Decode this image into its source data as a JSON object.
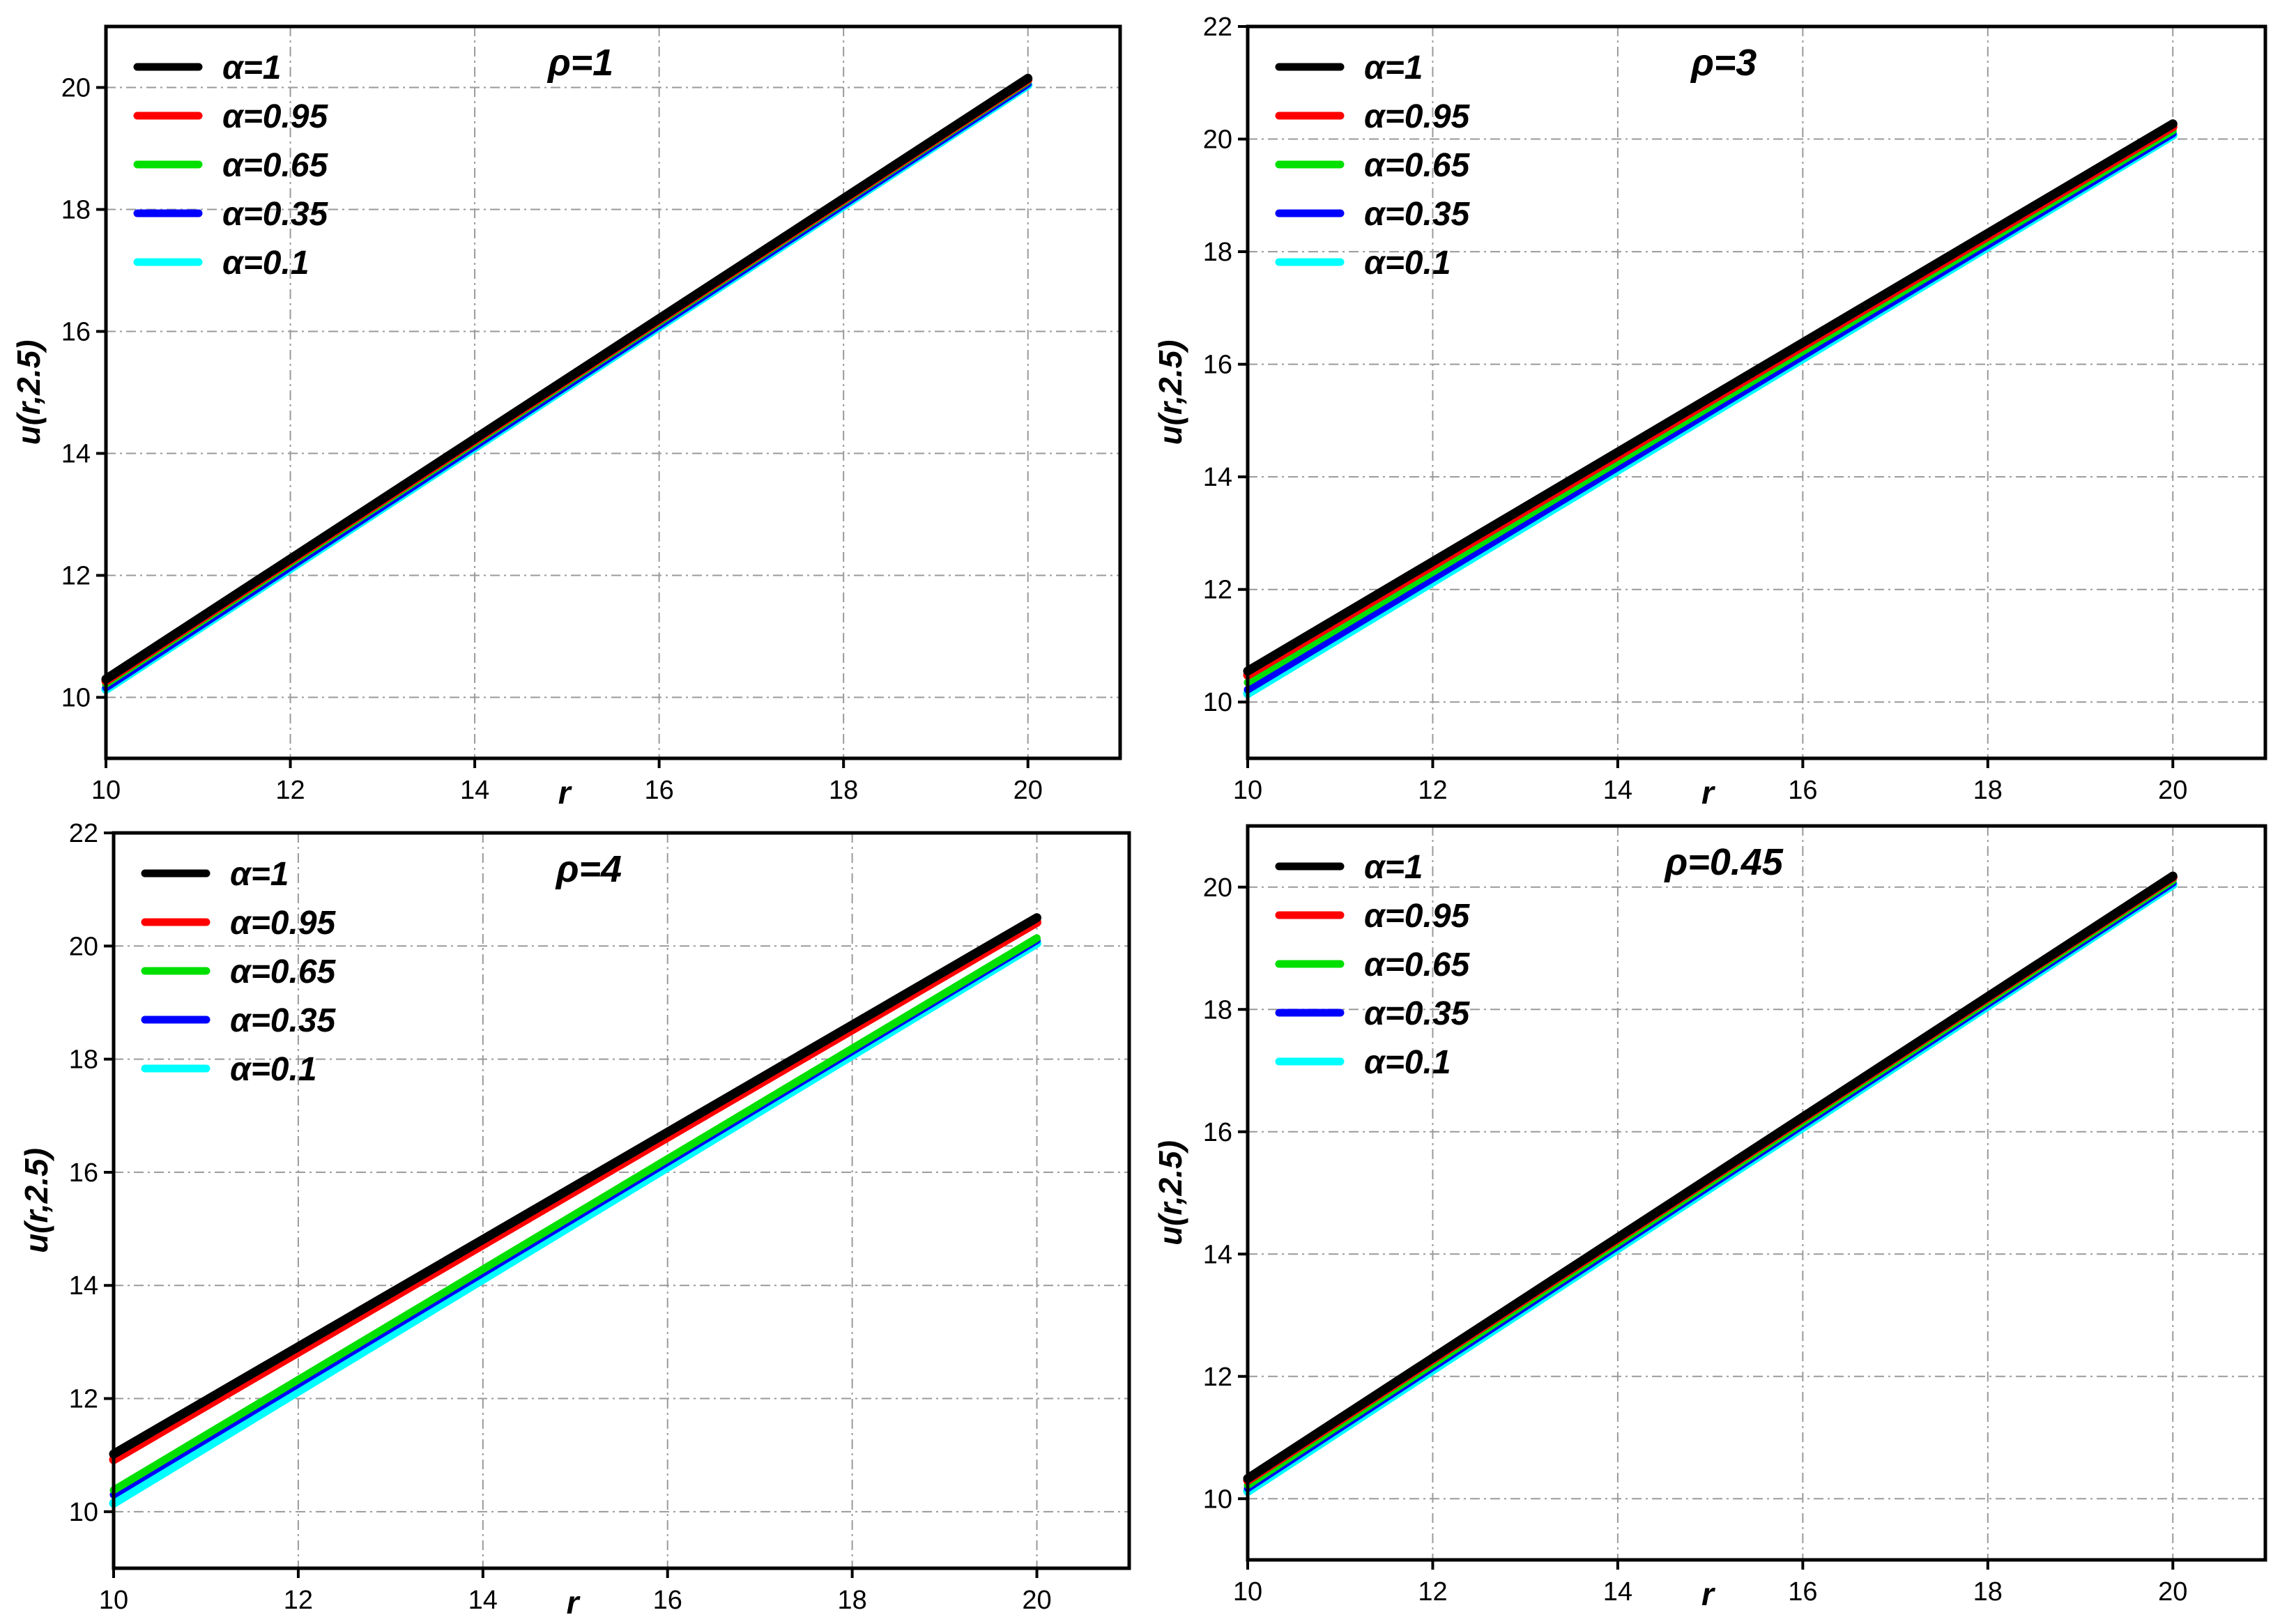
{
  "chart_data": [
    {
      "type": "line",
      "title": "ρ=1",
      "xlabel": "r",
      "ylabel": "u(r,2.5)",
      "xlim": [
        10,
        21
      ],
      "ylim": [
        9,
        21
      ],
      "xticks": [
        "10",
        "12",
        "14",
        "16",
        "18",
        "20"
      ],
      "yticks": [
        "10",
        "12",
        "14",
        "16",
        "18",
        "20"
      ],
      "grid": true,
      "legend_position": "top-left",
      "series": [
        {
          "name": "α=1",
          "color": "#000000",
          "x": [
            10,
            20
          ],
          "y": [
            10.3,
            20.15
          ]
        },
        {
          "name": "α=0.95",
          "color": "#ff0000",
          "x": [
            10,
            20
          ],
          "y": [
            10.27,
            20.13
          ]
        },
        {
          "name": "α=0.65",
          "color": "#00e000",
          "x": [
            10,
            20
          ],
          "y": [
            10.22,
            20.1
          ]
        },
        {
          "name": "α=0.35",
          "color": "#0000ff",
          "x": [
            10,
            20
          ],
          "y": [
            10.16,
            20.06
          ]
        },
        {
          "name": "α=0.1",
          "color": "#00ffff",
          "x": [
            10,
            20
          ],
          "y": [
            10.13,
            20.04
          ]
        }
      ]
    },
    {
      "type": "line",
      "title": "ρ=3",
      "xlabel": "r",
      "ylabel": "u(r,2.5)",
      "xlim": [
        10,
        21
      ],
      "ylim": [
        9,
        22
      ],
      "xticks": [
        "10",
        "12",
        "14",
        "16",
        "18",
        "20"
      ],
      "yticks": [
        "10",
        "12",
        "14",
        "16",
        "18",
        "20",
        "22"
      ],
      "grid": true,
      "legend_position": "top-left",
      "series": [
        {
          "name": "α=1",
          "color": "#000000",
          "x": [
            10,
            20
          ],
          "y": [
            10.55,
            20.27
          ]
        },
        {
          "name": "α=0.95",
          "color": "#ff0000",
          "x": [
            10,
            20
          ],
          "y": [
            10.48,
            20.22
          ]
        },
        {
          "name": "α=0.65",
          "color": "#00e000",
          "x": [
            10,
            20
          ],
          "y": [
            10.35,
            20.15
          ]
        },
        {
          "name": "α=0.35",
          "color": "#0000ff",
          "x": [
            10,
            20
          ],
          "y": [
            10.22,
            20.1
          ]
        },
        {
          "name": "α=0.1",
          "color": "#00ffff",
          "x": [
            10,
            20
          ],
          "y": [
            10.15,
            20.07
          ]
        }
      ]
    },
    {
      "type": "line",
      "title": "ρ=4",
      "xlabel": "r",
      "ylabel": "u(r,2.5)",
      "xlim": [
        10,
        21
      ],
      "ylim": [
        9,
        22
      ],
      "xticks": [
        "10",
        "12",
        "14",
        "16",
        "18",
        "20"
      ],
      "yticks": [
        "10",
        "12",
        "14",
        "16",
        "18",
        "20",
        "22"
      ],
      "grid": true,
      "legend_position": "top-left",
      "series": [
        {
          "name": "α=1",
          "color": "#000000",
          "x": [
            10,
            20
          ],
          "y": [
            11.02,
            20.5
          ]
        },
        {
          "name": "α=0.95",
          "color": "#ff0000",
          "x": [
            10,
            20
          ],
          "y": [
            10.92,
            20.42
          ]
        },
        {
          "name": "α=0.65",
          "color": "#00e000",
          "x": [
            10,
            20
          ],
          "y": [
            10.38,
            20.14
          ]
        },
        {
          "name": "α=0.35",
          "color": "#0000ff",
          "x": [
            10,
            20
          ],
          "y": [
            10.3,
            20.1
          ]
        },
        {
          "name": "α=0.1",
          "color": "#00ffff",
          "x": [
            10,
            20
          ],
          "y": [
            10.15,
            20.05
          ]
        }
      ]
    },
    {
      "type": "line",
      "title": "ρ=0.45",
      "xlabel": "r",
      "ylabel": "u(r,2.5)",
      "xlim": [
        10,
        21
      ],
      "ylim": [
        9,
        21
      ],
      "xticks": [
        "10",
        "12",
        "14",
        "16",
        "18",
        "20"
      ],
      "yticks": [
        "10",
        "12",
        "14",
        "16",
        "18",
        "20"
      ],
      "grid": true,
      "legend_position": "top-left",
      "series": [
        {
          "name": "α=1",
          "color": "#000000",
          "x": [
            10,
            20
          ],
          "y": [
            10.33,
            20.18
          ]
        },
        {
          "name": "α=0.95",
          "color": "#ff0000",
          "x": [
            10,
            20
          ],
          "y": [
            10.3,
            20.16
          ]
        },
        {
          "name": "α=0.65",
          "color": "#00e000",
          "x": [
            10,
            20
          ],
          "y": [
            10.22,
            20.11
          ]
        },
        {
          "name": "α=0.35",
          "color": "#0000ff",
          "x": [
            10,
            20
          ],
          "y": [
            10.17,
            20.07
          ]
        },
        {
          "name": "α=0.1",
          "color": "#00ffff",
          "x": [
            10,
            20
          ],
          "y": [
            10.12,
            20.04
          ]
        }
      ]
    }
  ]
}
